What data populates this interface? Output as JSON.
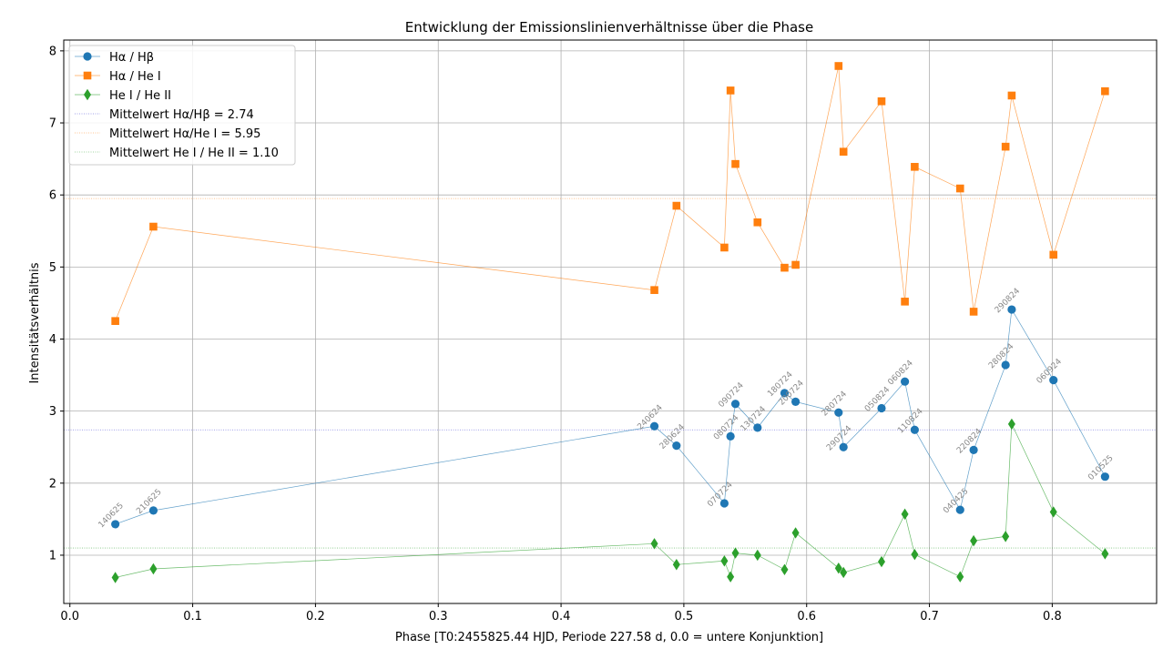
{
  "chart_data": {
    "type": "line",
    "title": "Entwicklung der Emissionslinienverhältnisse über die Phase",
    "xlabel": "Phase [T0:2455825.44 HJD, Periode 227.58 d, 0.0 = untere Konjunktion]",
    "ylabel": "Intensitätsverhältnis",
    "xlim": [
      -0.005,
      0.885
    ],
    "ylim": [
      0.33,
      8.15
    ],
    "xticks": [
      "0.0",
      "0.1",
      "0.2",
      "0.3",
      "0.4",
      "0.5",
      "0.6",
      "0.7",
      "0.8"
    ],
    "yticks": [
      "1",
      "2",
      "3",
      "4",
      "5",
      "6",
      "7",
      "8"
    ],
    "grid": true,
    "legend_position": "top-left",
    "point_labels": [
      "140625",
      "210625",
      "240624",
      "280624",
      "070724",
      "080724",
      "090724",
      "130724",
      "180724",
      "200724",
      "280724",
      "290724",
      "050824",
      "060824",
      "110824",
      "040425",
      "220824",
      "280824",
      "290824",
      "060924",
      "010525"
    ],
    "series": [
      {
        "name": "Hα / Hβ",
        "marker": "circle",
        "color": "#1f77b4",
        "x": [
          0.037,
          0.068,
          0.476,
          0.494,
          0.533,
          0.538,
          0.542,
          0.56,
          0.582,
          0.591,
          0.626,
          0.63,
          0.661,
          0.68,
          0.688,
          0.725,
          0.736,
          0.762,
          0.767,
          0.801,
          0.843
        ],
        "y": [
          1.43,
          1.62,
          2.79,
          2.52,
          1.72,
          2.65,
          3.1,
          2.77,
          3.25,
          3.13,
          2.98,
          2.5,
          3.04,
          3.41,
          2.74,
          1.63,
          2.46,
          3.64,
          4.41,
          3.43,
          2.09
        ]
      },
      {
        "name": "Hα / He I",
        "marker": "square",
        "color": "#ff7f0e",
        "x": [
          0.037,
          0.068,
          0.476,
          0.494,
          0.533,
          0.538,
          0.542,
          0.56,
          0.582,
          0.591,
          0.626,
          0.63,
          0.661,
          0.68,
          0.688,
          0.725,
          0.736,
          0.762,
          0.767,
          0.801,
          0.843
        ],
        "y": [
          4.25,
          5.56,
          4.68,
          5.85,
          5.27,
          7.45,
          6.43,
          5.62,
          4.99,
          5.03,
          7.79,
          6.6,
          7.3,
          4.52,
          6.39,
          6.09,
          4.38,
          6.67,
          7.38,
          5.17,
          7.44
        ]
      },
      {
        "name": "He I / He II",
        "marker": "diamond",
        "color": "#2ca02c",
        "x": [
          0.037,
          0.068,
          0.476,
          0.494,
          0.533,
          0.538,
          0.542,
          0.56,
          0.582,
          0.591,
          0.626,
          0.63,
          0.661,
          0.68,
          0.688,
          0.725,
          0.736,
          0.762,
          0.767,
          0.801,
          0.843
        ],
        "y": [
          0.69,
          0.81,
          1.16,
          0.87,
          0.92,
          0.7,
          1.03,
          1.0,
          0.8,
          1.31,
          0.82,
          0.76,
          0.91,
          1.57,
          1.01,
          0.7,
          1.2,
          1.26,
          2.82,
          1.6,
          1.02
        ]
      }
    ],
    "mean_lines": [
      {
        "name": "Mittelwert Hα/Hβ = 2.74",
        "value": 2.74,
        "color": "#3030d0",
        "style": "dotted"
      },
      {
        "name": "Mittelwert Hα/He I = 5.95",
        "value": 5.95,
        "color": "#ff7f0e",
        "style": "dotted"
      },
      {
        "name": "Mittelwert He I / He II = 1.10",
        "value": 1.1,
        "color": "#2ca02c",
        "style": "dotted"
      }
    ]
  }
}
